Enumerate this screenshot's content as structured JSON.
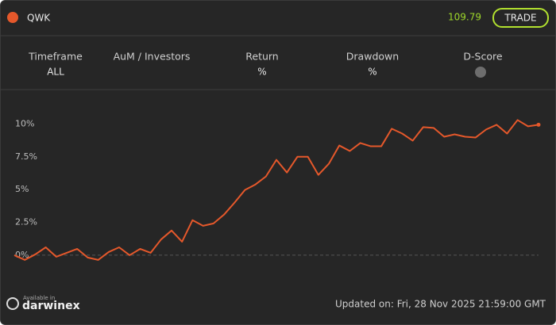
{
  "header": {
    "symbol": "QWK",
    "price": "109.79",
    "button": "TRADE"
  },
  "stats": [
    {
      "label": "Timeframe",
      "value": "ALL"
    },
    {
      "label": "AuM / Investors"
    },
    {
      "label": "Return",
      "value": "%"
    },
    {
      "label": "Drawdown",
      "value": "%"
    },
    {
      "label": "D-Score"
    }
  ],
  "footer": {
    "available": "Available in",
    "brand": "darwinex",
    "updated": "Updated on: Fri, 28 Nov 2025 21:59:00 GMT"
  },
  "chart_data": {
    "type": "line",
    "color": "#e5582b",
    "values": [
      0,
      -0.36,
      0.06,
      0.6,
      -0.12,
      0.18,
      0.48,
      -0.18,
      -0.36,
      0.24,
      0.6,
      0,
      0.48,
      0.18,
      1.2,
      1.88,
      1.03,
      2.67,
      2.24,
      2.42,
      3.09,
      4.0,
      4.97,
      5.39,
      6.0,
      7.27,
      6.3,
      7.5,
      7.5,
      6.12,
      6.97,
      8.36,
      7.94,
      8.55,
      8.3,
      8.3,
      9.64,
      9.27,
      8.73,
      9.76,
      9.7,
      9.03,
      9.21,
      9.03,
      8.97,
      9.58,
      9.94,
      9.27,
      10.3,
      9.82,
      9.94
    ],
    "ylim": [
      -2.3,
      12.2
    ],
    "yticks": [
      {
        "value": 0,
        "label": "0%"
      },
      {
        "value": 2.5,
        "label": "2.5%"
      },
      {
        "value": 5,
        "label": "5%"
      },
      {
        "value": 7.5,
        "label": "7.5%"
      },
      {
        "value": 10,
        "label": "10%"
      }
    ]
  }
}
